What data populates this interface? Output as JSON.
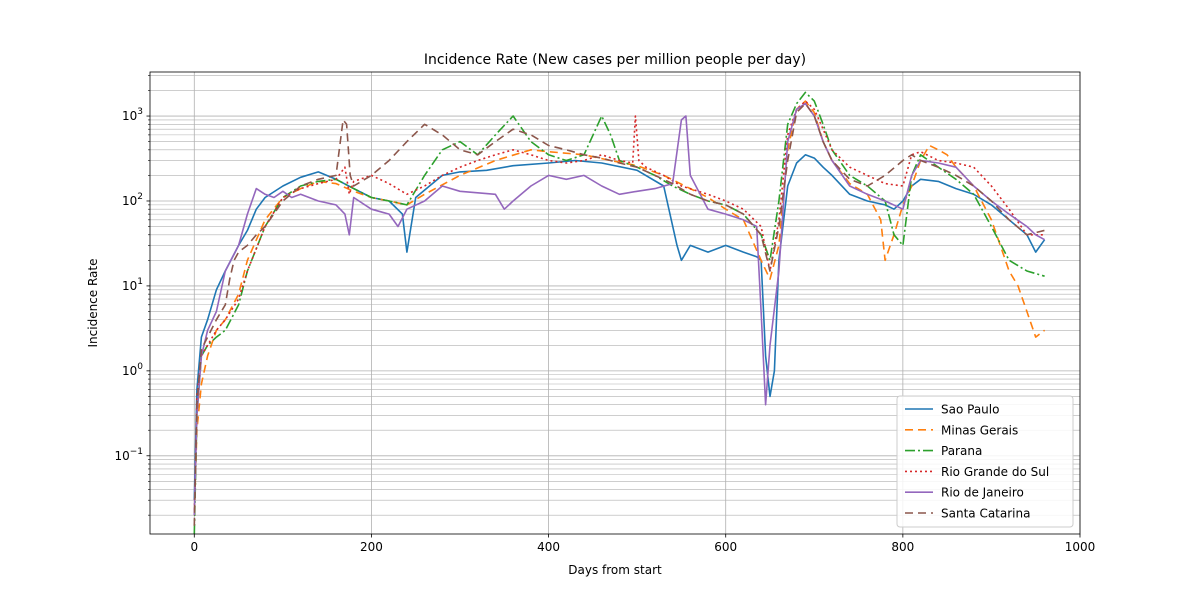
{
  "chart_data": {
    "type": "line",
    "title": "Incidence Rate (New cases per million people per day)",
    "xlabel": "Days from start",
    "ylabel": "Incidence Rate",
    "xlim": [
      -50,
      1000
    ],
    "ylim": [
      0.012,
      3300
    ],
    "yscale": "log",
    "grid": true,
    "legend_position": "lower-right",
    "x_ticks": [
      0,
      200,
      400,
      600,
      800,
      1000
    ],
    "x_tick_labels": [
      "0",
      "200",
      "400",
      "600",
      "800",
      "1000"
    ],
    "y_ticks": [
      0.1,
      1,
      10,
      100,
      1000
    ],
    "y_tick_labels": [
      {
        "base": "10",
        "exp": "−1"
      },
      {
        "base": "10",
        "exp": "0"
      },
      {
        "base": "10",
        "exp": "1"
      },
      {
        "base": "10",
        "exp": "2"
      },
      {
        "base": "10",
        "exp": "3"
      }
    ],
    "series": [
      {
        "name": "Sao Paulo",
        "color": "#1f77b4",
        "dash": "solid",
        "x": [
          0,
          3,
          8,
          15,
          25,
          35,
          50,
          60,
          70,
          80,
          100,
          120,
          140,
          160,
          180,
          200,
          220,
          235,
          240,
          250,
          280,
          300,
          330,
          360,
          400,
          430,
          460,
          500,
          530,
          545,
          550,
          560,
          580,
          600,
          620,
          635,
          640,
          645,
          650,
          655,
          660,
          670,
          680,
          690,
          700,
          710,
          720,
          740,
          760,
          780,
          790,
          800,
          810,
          820,
          840,
          860,
          880,
          900,
          920,
          940,
          950,
          960
        ],
        "y": [
          0.03,
          0.6,
          2.5,
          4,
          9,
          15,
          30,
          45,
          80,
          110,
          150,
          190,
          220,
          180,
          140,
          110,
          100,
          70,
          25,
          110,
          200,
          220,
          230,
          260,
          280,
          300,
          280,
          230,
          150,
          30,
          20,
          30,
          25,
          30,
          25,
          22,
          20,
          1.5,
          0.5,
          1,
          20,
          150,
          280,
          350,
          320,
          250,
          200,
          120,
          100,
          90,
          80,
          100,
          150,
          180,
          170,
          140,
          120,
          90,
          60,
          40,
          25,
          35
        ]
      },
      {
        "name": "Minas Gerais",
        "color": "#ff7f0e",
        "dash": "8,5",
        "x": [
          0,
          3,
          8,
          15,
          25,
          35,
          50,
          60,
          80,
          100,
          120,
          140,
          160,
          180,
          200,
          220,
          240,
          260,
          300,
          340,
          380,
          400,
          440,
          470,
          500,
          530,
          560,
          580,
          600,
          620,
          640,
          650,
          660,
          670,
          680,
          690,
          700,
          710,
          720,
          740,
          760,
          775,
          780,
          790,
          800,
          810,
          820,
          830,
          840,
          850,
          860,
          880,
          900,
          910,
          920,
          930,
          940,
          950,
          960
        ],
        "y": [
          0.02,
          0.2,
          0.7,
          1.5,
          3,
          4,
          8,
          20,
          60,
          110,
          140,
          170,
          160,
          130,
          110,
          100,
          90,
          120,
          200,
          300,
          400,
          380,
          350,
          300,
          260,
          200,
          140,
          110,
          80,
          60,
          20,
          12,
          30,
          400,
          1200,
          1500,
          1100,
          500,
          300,
          160,
          120,
          60,
          20,
          40,
          90,
          150,
          300,
          450,
          400,
          350,
          250,
          150,
          60,
          30,
          15,
          10,
          5,
          2.5,
          3
        ]
      },
      {
        "name": "Parana",
        "color": "#2ca02c",
        "dash": "10,3,2,3",
        "x": [
          0,
          3,
          8,
          15,
          25,
          35,
          50,
          60,
          80,
          100,
          120,
          140,
          160,
          180,
          200,
          220,
          240,
          260,
          280,
          300,
          320,
          340,
          360,
          380,
          400,
          420,
          440,
          460,
          470,
          480,
          500,
          520,
          540,
          560,
          580,
          600,
          620,
          640,
          650,
          660,
          670,
          680,
          690,
          700,
          710,
          720,
          740,
          760,
          780,
          790,
          800,
          810,
          820,
          840,
          860,
          880,
          900,
          920,
          940,
          960
        ],
        "y": [
          0.012,
          0.3,
          1.5,
          2,
          2.5,
          3,
          6,
          15,
          50,
          110,
          150,
          170,
          180,
          140,
          110,
          100,
          90,
          200,
          400,
          500,
          350,
          600,
          1000,
          500,
          350,
          300,
          350,
          1000,
          600,
          300,
          250,
          200,
          150,
          120,
          100,
          90,
          70,
          40,
          20,
          100,
          800,
          1400,
          1900,
          1500,
          800,
          400,
          200,
          150,
          100,
          40,
          30,
          200,
          350,
          250,
          180,
          120,
          50,
          20,
          15,
          13
        ]
      },
      {
        "name": "Rio Grande do Sul",
        "color": "#d62728",
        "dash": "2,3",
        "x": [
          0,
          3,
          8,
          15,
          25,
          35,
          50,
          60,
          80,
          100,
          120,
          140,
          160,
          170,
          175,
          180,
          200,
          220,
          240,
          260,
          280,
          300,
          320,
          340,
          360,
          380,
          400,
          420,
          440,
          460,
          480,
          495,
          498,
          502,
          510,
          530,
          550,
          580,
          600,
          620,
          640,
          650,
          660,
          670,
          680,
          690,
          700,
          710,
          720,
          740,
          760,
          780,
          800,
          810,
          820,
          840,
          860,
          880,
          900,
          920,
          940,
          960
        ],
        "y": [
          0.02,
          0.5,
          1.5,
          2,
          3,
          4,
          7,
          15,
          50,
          110,
          140,
          160,
          180,
          250,
          120,
          170,
          200,
          160,
          120,
          150,
          200,
          250,
          300,
          350,
          400,
          350,
          300,
          280,
          300,
          350,
          300,
          280,
          1000,
          300,
          250,
          200,
          150,
          120,
          100,
          80,
          50,
          15,
          60,
          600,
          1200,
          1500,
          1200,
          700,
          400,
          250,
          200,
          160,
          150,
          350,
          380,
          300,
          280,
          250,
          150,
          80,
          40,
          40
        ]
      },
      {
        "name": "Rio de Janeiro",
        "color": "#9467bd",
        "dash": "solid",
        "x": [
          0,
          3,
          8,
          15,
          25,
          35,
          50,
          60,
          70,
          80,
          90,
          100,
          110,
          120,
          140,
          160,
          170,
          175,
          180,
          200,
          220,
          230,
          240,
          260,
          280,
          300,
          340,
          350,
          360,
          380,
          400,
          420,
          440,
          460,
          480,
          500,
          520,
          540,
          550,
          555,
          560,
          580,
          600,
          620,
          635,
          640,
          645,
          650,
          660,
          670,
          680,
          690,
          700,
          710,
          720,
          740,
          760,
          780,
          800,
          810,
          820,
          840,
          860,
          880,
          900,
          920,
          940,
          950,
          960
        ],
        "y": [
          0.02,
          0.3,
          1.5,
          3,
          5,
          15,
          30,
          70,
          140,
          120,
          110,
          130,
          110,
          120,
          100,
          90,
          70,
          40,
          110,
          80,
          70,
          50,
          80,
          100,
          150,
          130,
          120,
          80,
          100,
          150,
          200,
          180,
          200,
          150,
          120,
          130,
          140,
          160,
          900,
          1000,
          200,
          80,
          70,
          60,
          50,
          5,
          0.4,
          2,
          15,
          500,
          1200,
          1400,
          1000,
          500,
          300,
          150,
          120,
          100,
          80,
          200,
          300,
          280,
          250,
          150,
          100,
          70,
          50,
          40,
          35
        ]
      },
      {
        "name": "Santa Catarina",
        "color": "#8c564b",
        "dash": "8,5",
        "x": [
          0,
          3,
          8,
          15,
          25,
          35,
          40,
          45,
          50,
          60,
          70,
          80,
          100,
          120,
          140,
          160,
          168,
          172,
          176,
          180,
          200,
          220,
          240,
          260,
          280,
          300,
          320,
          340,
          360,
          380,
          400,
          420,
          440,
          460,
          480,
          500,
          520,
          540,
          560,
          580,
          600,
          620,
          640,
          650,
          660,
          670,
          680,
          690,
          700,
          710,
          720,
          740,
          760,
          780,
          800,
          810,
          820,
          840,
          860,
          880,
          900,
          920,
          940,
          960
        ],
        "y": [
          0.015,
          0.4,
          1.8,
          2.5,
          4,
          6,
          12,
          20,
          25,
          30,
          40,
          50,
          100,
          150,
          180,
          200,
          900,
          800,
          200,
          150,
          200,
          300,
          500,
          800,
          600,
          400,
          350,
          500,
          700,
          600,
          450,
          400,
          350,
          320,
          280,
          250,
          200,
          160,
          120,
          100,
          90,
          70,
          40,
          15,
          50,
          300,
          1100,
          1400,
          1000,
          500,
          300,
          180,
          150,
          200,
          300,
          350,
          300,
          250,
          200,
          150,
          100,
          60,
          40,
          45
        ]
      }
    ]
  }
}
